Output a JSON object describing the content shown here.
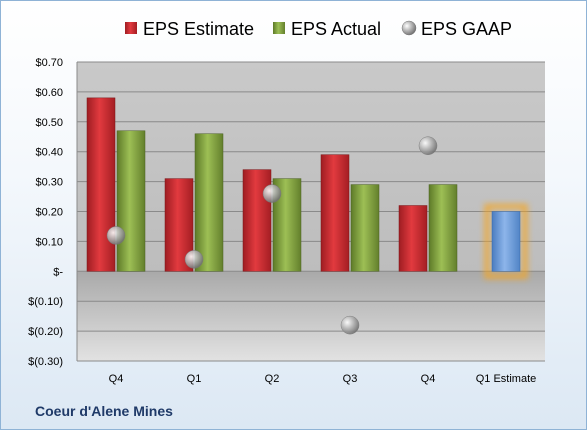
{
  "company": "Coeur d'Alene Mines",
  "chart_data": {
    "type": "bar",
    "categories": [
      "Q4",
      "Q1",
      "Q2",
      "Q3",
      "Q4",
      "Q1 Estimate"
    ],
    "series": [
      {
        "name": "EPS Estimate",
        "type": "bar",
        "color": "#c0282d",
        "values": [
          0.58,
          0.31,
          0.34,
          0.39,
          0.22,
          null
        ]
      },
      {
        "name": "EPS Actual",
        "type": "bar",
        "color": "#7a9a3a",
        "values": [
          0.47,
          0.46,
          0.31,
          0.29,
          0.29,
          null
        ]
      },
      {
        "name": "EPS GAAP",
        "type": "scatter",
        "color": "#9a9a9a",
        "values": [
          0.12,
          0.04,
          0.26,
          -0.18,
          0.42,
          null
        ]
      },
      {
        "name": "",
        "type": "bar",
        "color": "#6a9ad8",
        "highlight": "#f5a623",
        "values": [
          null,
          null,
          null,
          null,
          null,
          0.2
        ]
      }
    ],
    "ylim": [
      -0.3,
      0.7
    ],
    "yticks": [
      0.7,
      0.6,
      0.5,
      0.4,
      0.3,
      0.2,
      0.1,
      0.0,
      -0.1,
      -0.2,
      -0.3
    ],
    "ytick_labels": [
      "$0.70",
      "$0.60",
      "$0.50",
      "$0.40",
      "$0.30",
      "$0.20",
      "$0.10",
      "$-",
      "$(0.10)",
      "$(0.20)",
      "$(0.30)"
    ],
    "legend_position": "top",
    "grid": true
  }
}
